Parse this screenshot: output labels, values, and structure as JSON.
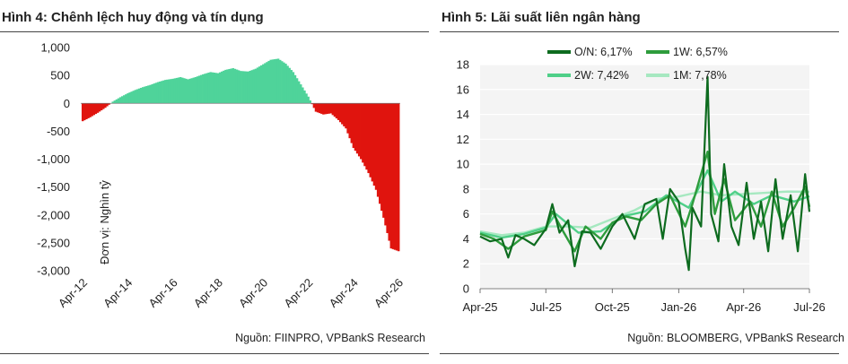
{
  "figures": [
    {
      "title": "Hình 4: Chênh lệch huy động và tín dụng",
      "source": "Nguồn: FIINPRO, VPBankS Research"
    },
    {
      "title": "Hình 5: Lãi suất liên ngân hàng",
      "source": "Nguồn: BLOOMBERG, VPBankS Research"
    }
  ],
  "chart_data": [
    {
      "type": "bar",
      "ylabel": "Đơn vị: Nghìn tỷ",
      "ylim": [
        -3000,
        1000
      ],
      "yticks": [
        1000,
        500,
        0,
        -500,
        -1000,
        -1500,
        -2000,
        -2500,
        -3000
      ],
      "ytick_labels": [
        "1,000",
        "500",
        "0",
        "-500",
        "-1,000",
        "-1,500",
        "-2,000",
        "-2,500",
        "-3,000"
      ],
      "xticks": [
        "Apr-12",
        "Apr-14",
        "Apr-16",
        "Apr-18",
        "Apr-20",
        "Apr-22",
        "Apr-24",
        "Apr-26"
      ],
      "x_start": "2012-04",
      "x_end": "2026-04",
      "positive_color": "#4fd39a",
      "negative_color": "#e0140e",
      "series": [
        {
          "x": "2012-04",
          "y": -320
        },
        {
          "x": "2012-08",
          "y": -250
        },
        {
          "x": "2012-12",
          "y": -170
        },
        {
          "x": "2013-04",
          "y": -80
        },
        {
          "x": "2013-08",
          "y": 30
        },
        {
          "x": "2013-12",
          "y": 110
        },
        {
          "x": "2014-04",
          "y": 180
        },
        {
          "x": "2014-08",
          "y": 240
        },
        {
          "x": "2014-12",
          "y": 290
        },
        {
          "x": "2015-04",
          "y": 330
        },
        {
          "x": "2015-08",
          "y": 380
        },
        {
          "x": "2015-12",
          "y": 420
        },
        {
          "x": "2016-04",
          "y": 440
        },
        {
          "x": "2016-08",
          "y": 470
        },
        {
          "x": "2016-12",
          "y": 430
        },
        {
          "x": "2017-04",
          "y": 470
        },
        {
          "x": "2017-08",
          "y": 520
        },
        {
          "x": "2017-12",
          "y": 560
        },
        {
          "x": "2018-04",
          "y": 540
        },
        {
          "x": "2018-08",
          "y": 600
        },
        {
          "x": "2018-12",
          "y": 630
        },
        {
          "x": "2019-04",
          "y": 580
        },
        {
          "x": "2019-08",
          "y": 570
        },
        {
          "x": "2019-12",
          "y": 620
        },
        {
          "x": "2020-04",
          "y": 700
        },
        {
          "x": "2020-08",
          "y": 780
        },
        {
          "x": "2020-12",
          "y": 800
        },
        {
          "x": "2021-04",
          "y": 710
        },
        {
          "x": "2021-08",
          "y": 560
        },
        {
          "x": "2021-12",
          "y": 340
        },
        {
          "x": "2022-04",
          "y": 120
        },
        {
          "x": "2022-08",
          "y": -150
        },
        {
          "x": "2022-12",
          "y": -200
        },
        {
          "x": "2023-04",
          "y": -180
        },
        {
          "x": "2023-08",
          "y": -300
        },
        {
          "x": "2023-12",
          "y": -450
        },
        {
          "x": "2024-04",
          "y": -800
        },
        {
          "x": "2024-08",
          "y": -1000
        },
        {
          "x": "2024-12",
          "y": -1250
        },
        {
          "x": "2025-04",
          "y": -1550
        },
        {
          "x": "2025-08",
          "y": -2050
        },
        {
          "x": "2025-12",
          "y": -2600
        },
        {
          "x": "2026-04",
          "y": -2650
        }
      ]
    },
    {
      "type": "line",
      "ylim": [
        0,
        18
      ],
      "yticks": [
        0,
        2,
        4,
        6,
        8,
        10,
        12,
        14,
        16,
        18
      ],
      "xticks": [
        "Apr-25",
        "Jul-25",
        "Oct-25",
        "Jan-26",
        "Apr-26",
        "Jul-26"
      ],
      "x_start": "2025-04",
      "x_end": "2026-07",
      "legend_position": "top-center",
      "series": [
        {
          "name": "O/N: 6,17%",
          "color": "#0d6b1f",
          "values": [
            {
              "x": "2025-04-01",
              "y": 4.2
            },
            {
              "x": "2025-04-15",
              "y": 3.8
            },
            {
              "x": "2025-05-01",
              "y": 4.0
            },
            {
              "x": "2025-05-10",
              "y": 2.5
            },
            {
              "x": "2025-05-20",
              "y": 4.3
            },
            {
              "x": "2025-06-01",
              "y": 4.0
            },
            {
              "x": "2025-06-15",
              "y": 3.5
            },
            {
              "x": "2025-07-01",
              "y": 4.8
            },
            {
              "x": "2025-07-10",
              "y": 6.8
            },
            {
              "x": "2025-07-20",
              "y": 4.5
            },
            {
              "x": "2025-08-01",
              "y": 5.5
            },
            {
              "x": "2025-08-10",
              "y": 1.8
            },
            {
              "x": "2025-08-20",
              "y": 4.6
            },
            {
              "x": "2025-09-01",
              "y": 4.5
            },
            {
              "x": "2025-09-15",
              "y": 3.2
            },
            {
              "x": "2025-10-01",
              "y": 5.0
            },
            {
              "x": "2025-10-15",
              "y": 6.0
            },
            {
              "x": "2025-11-01",
              "y": 4.0
            },
            {
              "x": "2025-11-15",
              "y": 6.8
            },
            {
              "x": "2025-12-01",
              "y": 7.2
            },
            {
              "x": "2025-12-10",
              "y": 4.0
            },
            {
              "x": "2025-12-20",
              "y": 8.0
            },
            {
              "x": "2026-01-01",
              "y": 7.0
            },
            {
              "x": "2026-01-10",
              "y": 3.2
            },
            {
              "x": "2026-01-15",
              "y": 1.5
            },
            {
              "x": "2026-01-20",
              "y": 6.5
            },
            {
              "x": "2026-02-01",
              "y": 5.0
            },
            {
              "x": "2026-02-10",
              "y": 17.0
            },
            {
              "x": "2026-02-15",
              "y": 6.0
            },
            {
              "x": "2026-02-25",
              "y": 3.8
            },
            {
              "x": "2026-03-05",
              "y": 10.0
            },
            {
              "x": "2026-03-15",
              "y": 5.0
            },
            {
              "x": "2026-03-25",
              "y": 3.5
            },
            {
              "x": "2026-04-05",
              "y": 8.5
            },
            {
              "x": "2026-04-15",
              "y": 4.0
            },
            {
              "x": "2026-04-25",
              "y": 7.0
            },
            {
              "x": "2026-05-05",
              "y": 3.0
            },
            {
              "x": "2026-05-15",
              "y": 8.8
            },
            {
              "x": "2026-05-25",
              "y": 4.0
            },
            {
              "x": "2026-06-05",
              "y": 7.5
            },
            {
              "x": "2026-06-15",
              "y": 3.0
            },
            {
              "x": "2026-06-25",
              "y": 9.2
            },
            {
              "x": "2026-07-01",
              "y": 6.17
            }
          ]
        },
        {
          "name": "1W: 6,57%",
          "color": "#2e9c3c",
          "values": [
            {
              "x": "2025-04-01",
              "y": 4.4
            },
            {
              "x": "2025-04-20",
              "y": 4.0
            },
            {
              "x": "2025-05-10",
              "y": 3.2
            },
            {
              "x": "2025-06-01",
              "y": 4.2
            },
            {
              "x": "2025-07-01",
              "y": 4.7
            },
            {
              "x": "2025-07-10",
              "y": 6.2
            },
            {
              "x": "2025-07-25",
              "y": 4.6
            },
            {
              "x": "2025-08-10",
              "y": 3.0
            },
            {
              "x": "2025-08-25",
              "y": 5.0
            },
            {
              "x": "2025-09-15",
              "y": 4.0
            },
            {
              "x": "2025-10-01",
              "y": 5.3
            },
            {
              "x": "2025-10-20",
              "y": 5.8
            },
            {
              "x": "2025-11-10",
              "y": 5.5
            },
            {
              "x": "2025-12-01",
              "y": 6.8
            },
            {
              "x": "2025-12-20",
              "y": 7.5
            },
            {
              "x": "2026-01-10",
              "y": 5.0
            },
            {
              "x": "2026-01-20",
              "y": 6.8
            },
            {
              "x": "2026-02-10",
              "y": 11.0
            },
            {
              "x": "2026-02-20",
              "y": 6.0
            },
            {
              "x": "2026-03-05",
              "y": 8.8
            },
            {
              "x": "2026-03-20",
              "y": 5.5
            },
            {
              "x": "2026-04-10",
              "y": 7.0
            },
            {
              "x": "2026-04-25",
              "y": 5.0
            },
            {
              "x": "2026-05-10",
              "y": 7.8
            },
            {
              "x": "2026-05-25",
              "y": 5.0
            },
            {
              "x": "2026-06-10",
              "y": 6.5
            },
            {
              "x": "2026-06-25",
              "y": 8.2
            },
            {
              "x": "2026-07-01",
              "y": 6.57
            }
          ]
        },
        {
          "name": "2W: 7,42%",
          "color": "#4fcf88",
          "values": [
            {
              "x": "2025-04-01",
              "y": 4.5
            },
            {
              "x": "2025-05-01",
              "y": 4.1
            },
            {
              "x": "2025-06-01",
              "y": 4.4
            },
            {
              "x": "2025-07-01",
              "y": 4.9
            },
            {
              "x": "2025-07-15",
              "y": 6.0
            },
            {
              "x": "2025-08-15",
              "y": 4.5
            },
            {
              "x": "2025-09-15",
              "y": 4.6
            },
            {
              "x": "2025-10-15",
              "y": 5.8
            },
            {
              "x": "2025-11-15",
              "y": 6.2
            },
            {
              "x": "2025-12-15",
              "y": 7.5
            },
            {
              "x": "2026-01-15",
              "y": 6.5
            },
            {
              "x": "2026-02-10",
              "y": 9.5
            },
            {
              "x": "2026-03-01",
              "y": 7.0
            },
            {
              "x": "2026-03-20",
              "y": 7.8
            },
            {
              "x": "2026-04-15",
              "y": 6.8
            },
            {
              "x": "2026-05-10",
              "y": 7.5
            },
            {
              "x": "2026-06-10",
              "y": 7.0
            },
            {
              "x": "2026-07-01",
              "y": 7.42
            }
          ]
        },
        {
          "name": "1M: 7,78%",
          "color": "#a6e8c0",
          "values": [
            {
              "x": "2025-04-01",
              "y": 4.6
            },
            {
              "x": "2025-05-01",
              "y": 4.3
            },
            {
              "x": "2025-06-01",
              "y": 4.5
            },
            {
              "x": "2025-07-01",
              "y": 5.0
            },
            {
              "x": "2025-08-01",
              "y": 5.0
            },
            {
              "x": "2025-09-01",
              "y": 4.9
            },
            {
              "x": "2025-10-01",
              "y": 5.6
            },
            {
              "x": "2025-11-01",
              "y": 6.3
            },
            {
              "x": "2025-12-01",
              "y": 7.2
            },
            {
              "x": "2026-01-01",
              "y": 7.4
            },
            {
              "x": "2026-02-01",
              "y": 7.8
            },
            {
              "x": "2026-03-01",
              "y": 7.5
            },
            {
              "x": "2026-04-01",
              "y": 7.6
            },
            {
              "x": "2026-05-01",
              "y": 7.7
            },
            {
              "x": "2026-06-01",
              "y": 7.8
            },
            {
              "x": "2026-07-01",
              "y": 7.78
            }
          ]
        }
      ]
    }
  ]
}
